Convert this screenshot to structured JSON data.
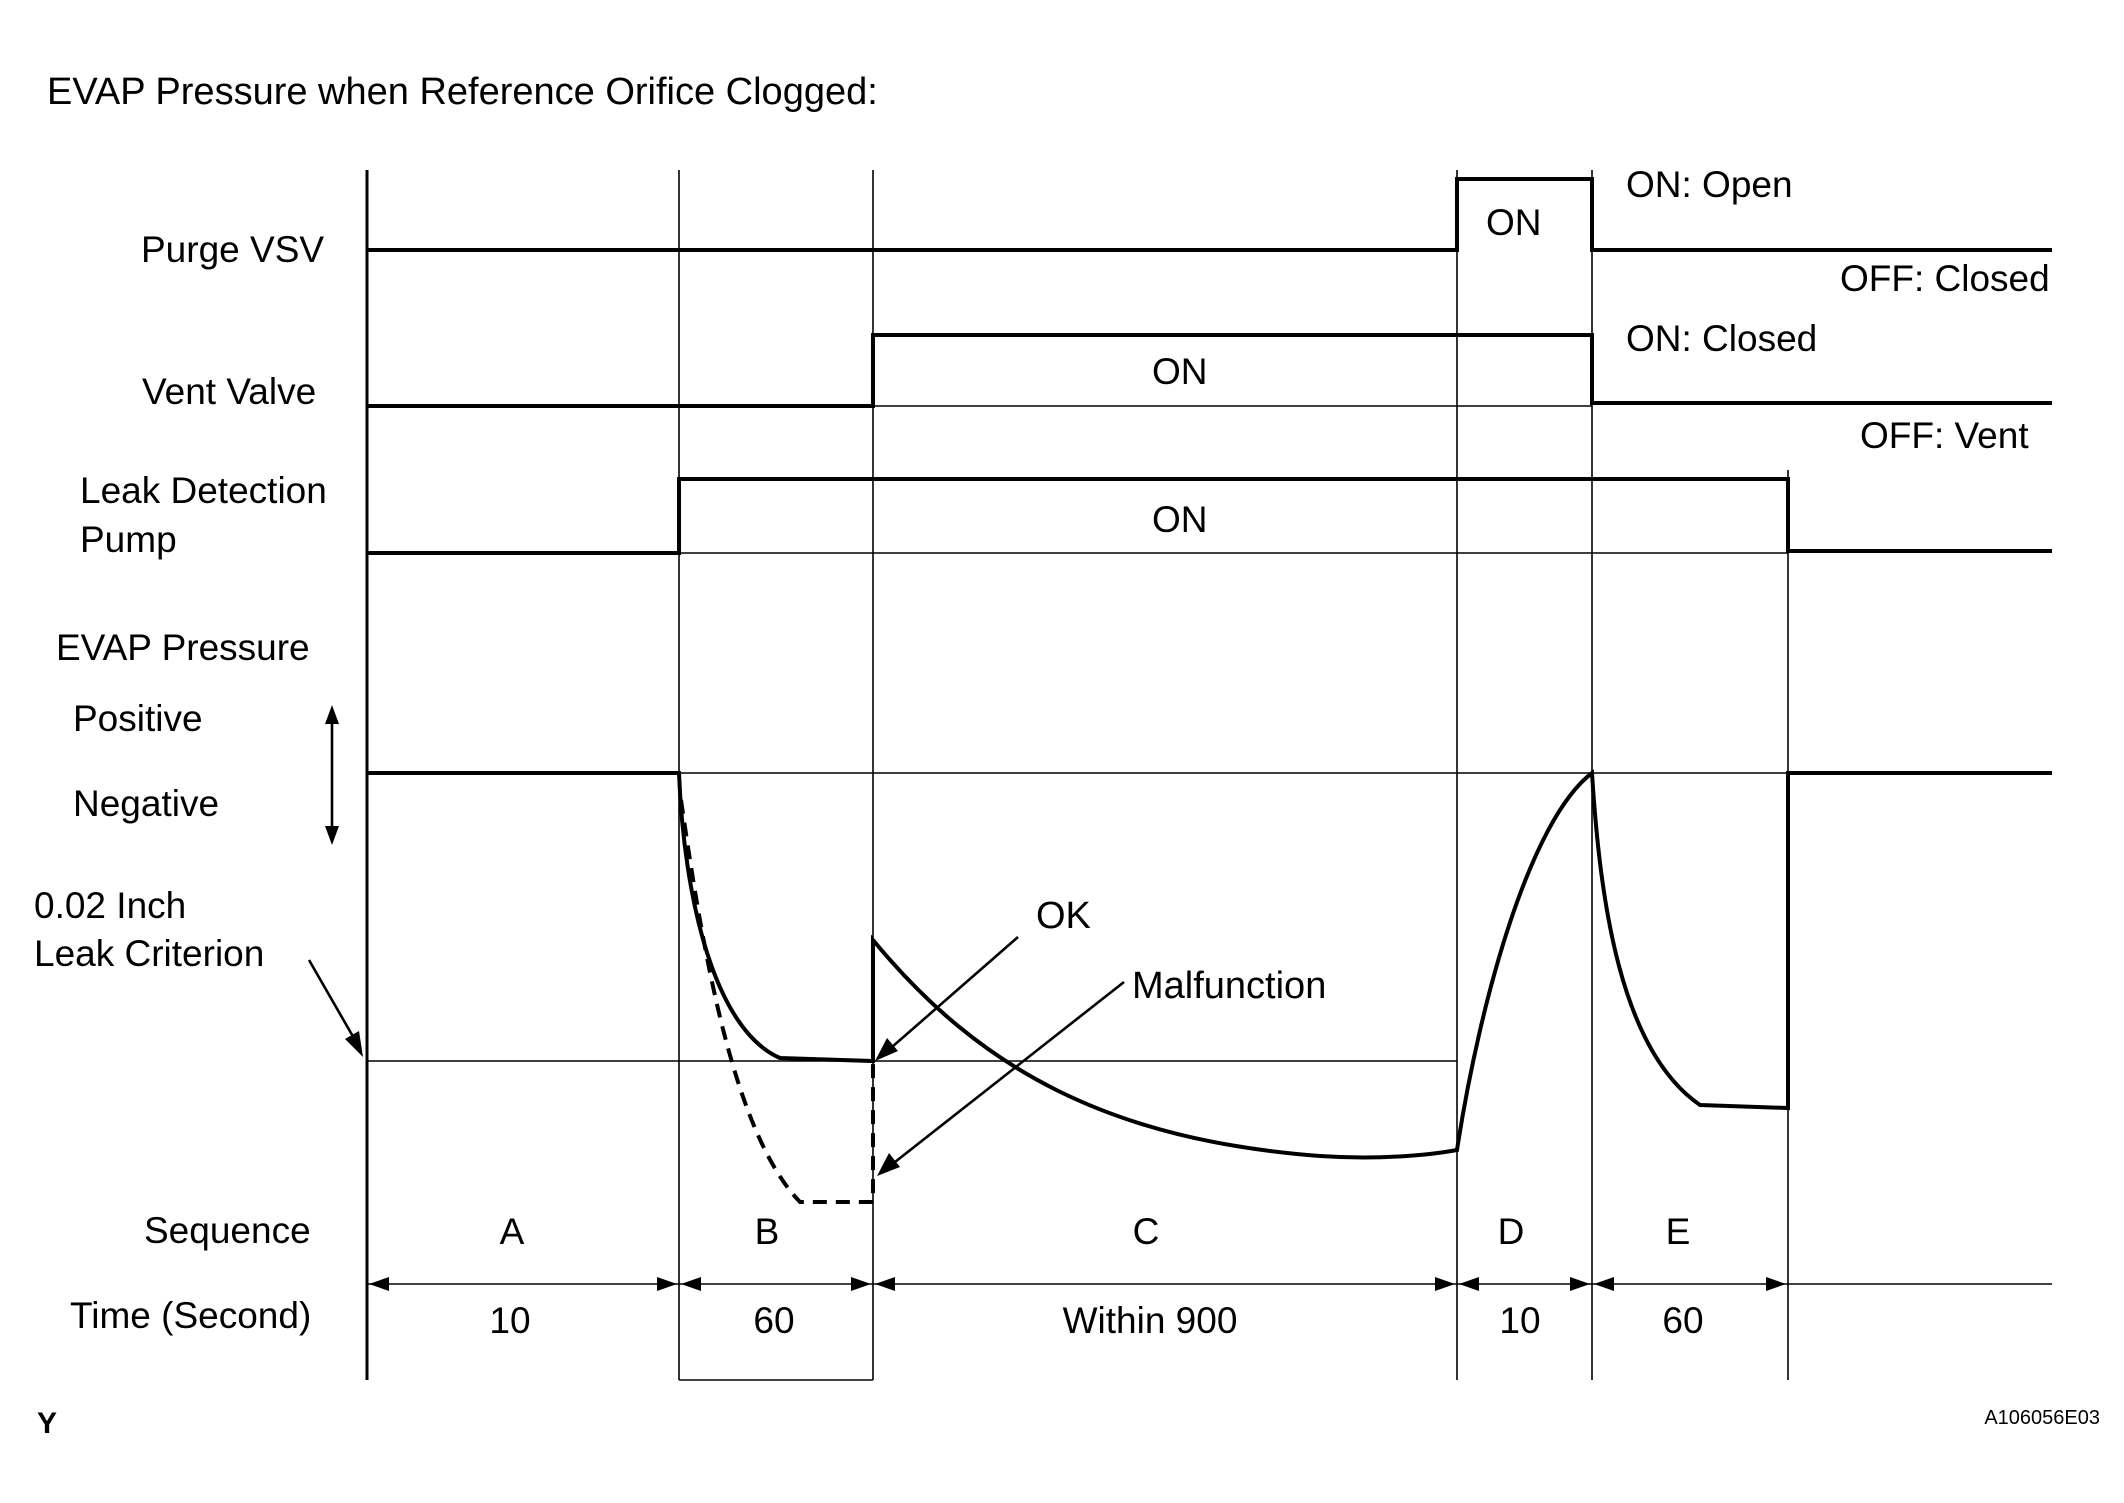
{
  "title": "EVAP Pressure when Reference Orifice Clogged:",
  "signals": {
    "purge_vsv": "Purge VSV",
    "vent_valve": "Vent Valve",
    "leak_pump_line1": "Leak Detection",
    "leak_pump_line2": "Pump",
    "evap_pressure": "EVAP Pressure",
    "positive": "Positive",
    "negative": "Negative",
    "criterion_line1": "0.02 Inch",
    "criterion_line2": "Leak Criterion",
    "sequence": "Sequence",
    "time": "Time (Second)"
  },
  "states": {
    "purge_on": "ON",
    "purge_on_desc": "ON: Open",
    "purge_off_desc": "OFF: Closed",
    "vent_on": "ON",
    "vent_on_desc": "ON: Closed",
    "vent_off_desc": "OFF: Vent",
    "pump_on": "ON"
  },
  "annotations": {
    "ok": "OK",
    "malfunction": "Malfunction"
  },
  "sequence": [
    {
      "label": "A",
      "time": "10"
    },
    {
      "label": "B",
      "time": "60"
    },
    {
      "label": "C",
      "time": "Within 900"
    },
    {
      "label": "D",
      "time": "10"
    },
    {
      "label": "E",
      "time": "60"
    }
  ],
  "footer": {
    "corner_mark": "Y",
    "figure_code": "A106056E03"
  }
}
